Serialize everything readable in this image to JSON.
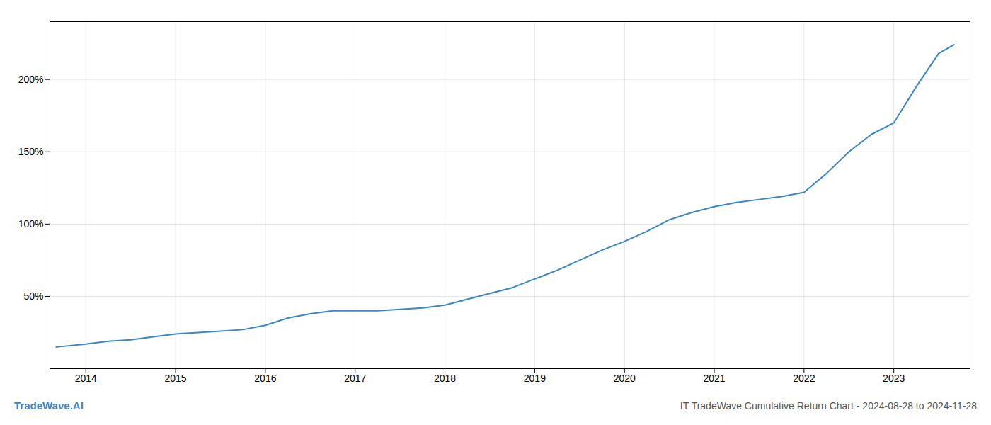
{
  "chart_data": {
    "type": "line",
    "title": "IT TradeWave Cumulative Return Chart - 2024-08-28 to 2024-11-28",
    "annotations": [
      {
        "text": "TradeWave.AI",
        "color": "#3a86c8"
      }
    ],
    "x": [
      2013.67,
      2014.0,
      2014.25,
      2014.5,
      2014.75,
      2015.0,
      2015.25,
      2015.5,
      2015.75,
      2016.0,
      2016.25,
      2016.5,
      2016.75,
      2017.0,
      2017.25,
      2017.5,
      2017.75,
      2018.0,
      2018.25,
      2018.5,
      2018.75,
      2019.0,
      2019.25,
      2019.5,
      2019.75,
      2020.0,
      2020.25,
      2020.5,
      2020.75,
      2021.0,
      2021.25,
      2021.5,
      2021.75,
      2022.0,
      2022.25,
      2022.5,
      2022.75,
      2023.0,
      2023.25,
      2023.5,
      2023.67
    ],
    "values": [
      15,
      17,
      19,
      20,
      22,
      24,
      25,
      26,
      27,
      30,
      35,
      38,
      40,
      40,
      40,
      41,
      42,
      44,
      48,
      52,
      56,
      62,
      68,
      75,
      82,
      88,
      95,
      103,
      108,
      112,
      115,
      117,
      119,
      122,
      135,
      150,
      162,
      170,
      195,
      218,
      224
    ],
    "color": "#3a86c8",
    "xlim": [
      2013.6,
      2023.85
    ],
    "xticks": [
      2014,
      2015,
      2016,
      2017,
      2018,
      2019,
      2020,
      2021,
      2022,
      2023
    ],
    "ylim": [
      0,
      240
    ],
    "yticks": [
      {
        "value": 50,
        "label": "50%"
      },
      {
        "value": 100,
        "label": "100%"
      },
      {
        "value": 150,
        "label": "150%"
      },
      {
        "value": 200,
        "label": "200%"
      }
    ],
    "grid": true
  }
}
